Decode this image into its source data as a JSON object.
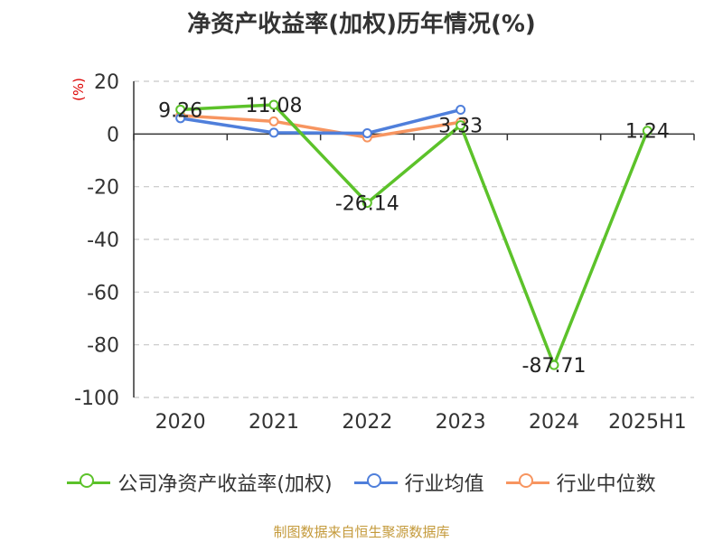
{
  "chart_data": {
    "type": "line",
    "title": "净资产收益率(加权)历年情况(%)",
    "ylabel": "(%)",
    "xlabel": "",
    "categories": [
      "2020",
      "2021",
      "2022",
      "2023",
      "2024",
      "2025H1"
    ],
    "ylim": [
      -100,
      20
    ],
    "yticks": [
      20,
      0,
      -20,
      -40,
      -60,
      -80,
      -100
    ],
    "grid": true,
    "legend_position": "bottom",
    "series": [
      {
        "name": "公司净资产收益率(加权)",
        "color": "#5cc22a",
        "values": [
          9.26,
          11.08,
          -26.14,
          3.33,
          -87.71,
          1.24
        ],
        "labels": [
          "9.26",
          "11.08",
          "-26.14",
          "3.33",
          "-87.71",
          "1.24"
        ]
      },
      {
        "name": "行业均值",
        "color": "#4f7fdb",
        "values": [
          6.0,
          0.5,
          0.3,
          9.2,
          null,
          null
        ]
      },
      {
        "name": "行业中位数",
        "color": "#f79560",
        "values": [
          7.0,
          4.8,
          -1.3,
          4.5,
          null,
          null
        ]
      }
    ]
  },
  "source": "制图数据来自恒生聚源数据库"
}
